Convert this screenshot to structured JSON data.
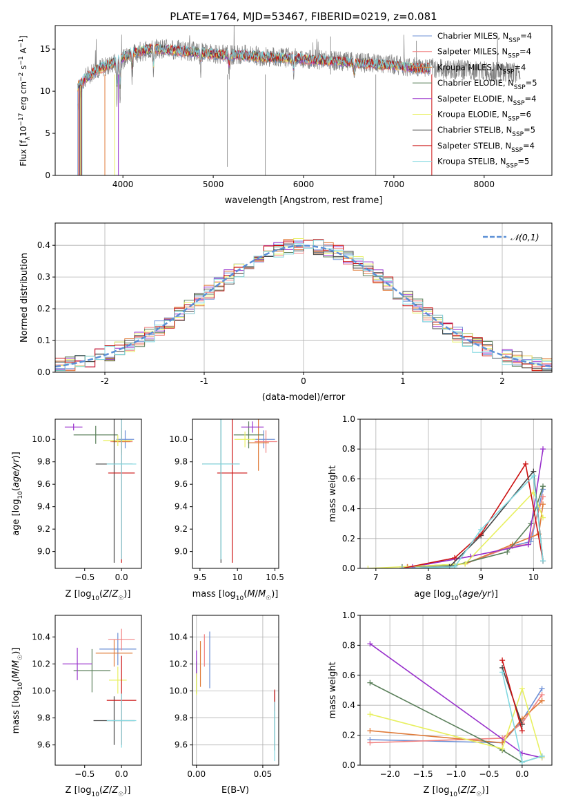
{
  "chart_data": [
    {
      "id": "spectrum",
      "type": "line",
      "title": "PLATE=1764, MJD=53467, FIBERID=0219, z=0.081",
      "xlabel": "wavelength [Angstrom, rest frame]",
      "ylabel": "Flux [f_λ 10^-17 erg cm^-2 s^-1 A^-1]",
      "xlim": [
        3250,
        8750
      ],
      "ylim": [
        0,
        17.8
      ],
      "xticks": [
        4000,
        5000,
        6000,
        7000,
        8000
      ],
      "yticks": [
        0,
        5,
        10,
        15
      ],
      "legend_position": "top-right",
      "legend": [
        {
          "label": "Chabrier MILES, N_SSP=4",
          "color": "#6b8fd6"
        },
        {
          "label": "Salpeter MILES, N_SSP=4",
          "color": "#f08080"
        },
        {
          "label": "Kroupa MILES, N_SSP=4",
          "color": "#e07b39"
        },
        {
          "label": "Chabrier ELODIE, N_SSP=5",
          "color": "#5a7f5a"
        },
        {
          "label": "Salpeter ELODIE, N_SSP=4",
          "color": "#9932cc"
        },
        {
          "label": "Kroupa ELODIE, N_SSP=6",
          "color": "#e8f060"
        },
        {
          "label": "Chabrier STELIB, N_SSP=5",
          "color": "#444444"
        },
        {
          "label": "Salpeter STELIB, N_SSP=4",
          "color": "#cc1111"
        },
        {
          "label": "Kroupa STELIB, N_SSP=5",
          "color": "#80d8e0"
        }
      ],
      "data_series": {
        "name": "data",
        "color": "#808080",
        "x": [
          3500,
          3600,
          3700,
          3800,
          3900,
          4000,
          4100,
          4200,
          4300,
          4400,
          4500,
          4600,
          4700,
          4800,
          4900,
          5000,
          5100,
          5200,
          5300,
          5400,
          5500,
          5600,
          5700,
          5800,
          5900,
          6000,
          6100,
          6200,
          6300,
          6400,
          6500,
          6600,
          6700,
          6800,
          6900,
          7000,
          7100,
          7200,
          7300,
          7400,
          7500,
          7600,
          7700,
          7800,
          7900,
          8000,
          8100,
          8200,
          8300,
          8400
        ],
        "y": [
          10.5,
          11.8,
          12.6,
          12.9,
          13.3,
          13.8,
          14.4,
          14.7,
          14.9,
          15.1,
          15.0,
          14.9,
          14.8,
          14.7,
          14.6,
          14.5,
          14.4,
          14.3,
          14.4,
          14.3,
          14.2,
          14.1,
          14.1,
          14.0,
          14.0,
          13.9,
          13.8,
          13.7,
          13.6,
          13.6,
          13.5,
          13.4,
          13.4,
          13.3,
          13.2,
          13.2,
          13.0,
          12.9,
          12.9,
          12.8,
          12.7,
          12.6,
          12.6,
          12.5,
          12.5,
          12.4,
          12.3,
          12.3,
          12.2,
          12.2
        ]
      },
      "model_series": {
        "x": [
          3500,
          3600,
          3700,
          3800,
          3900,
          4000,
          4100,
          4200,
          4300,
          4400,
          4500,
          4600,
          4700,
          4800,
          4900,
          5000,
          5100,
          5200,
          5300,
          5400,
          5500,
          5600,
          5700,
          5800,
          5900,
          6000,
          6100,
          6200,
          6300,
          6400,
          6500,
          6600,
          6700,
          6800,
          6900,
          7000,
          7100,
          7200,
          7300,
          7400
        ],
        "y": [
          10.6,
          11.6,
          12.5,
          12.9,
          13.4,
          14.0,
          14.6,
          14.8,
          15.0,
          15.0,
          14.9,
          14.8,
          14.7,
          14.6,
          14.5,
          14.4,
          14.3,
          14.3,
          14.3,
          14.2,
          14.1,
          14.0,
          14.0,
          13.9,
          13.9,
          13.8,
          13.7,
          13.6,
          13.6,
          13.5,
          13.4,
          13.3,
          13.3,
          13.2,
          13.1,
          13.1,
          12.9,
          12.8,
          12.7,
          12.7
        ]
      }
    },
    {
      "id": "histogram",
      "type": "line",
      "xlabel": "(data-model)/error",
      "ylabel": "Normed distribution",
      "xlim": [
        -2.5,
        2.5
      ],
      "ylim": [
        0,
        0.47
      ],
      "xticks": [
        -2,
        -1,
        0,
        1,
        2
      ],
      "yticks": [
        0.0,
        0.1,
        0.2,
        0.3,
        0.4
      ],
      "legend_position": "top-right",
      "legend_label": "𝒩(0,1)",
      "gaussian_color": "#5b8fd6",
      "bin_edges": [
        -2.5,
        -2.4,
        -2.3,
        -2.2,
        -2.1,
        -2.0,
        -1.9,
        -1.8,
        -1.7,
        -1.6,
        -1.5,
        -1.4,
        -1.3,
        -1.2,
        -1.1,
        -1.0,
        -0.9,
        -0.8,
        -0.7,
        -0.6,
        -0.5,
        -0.4,
        -0.3,
        -0.2,
        -0.1,
        0.0,
        0.1,
        0.2,
        0.3,
        0.4,
        0.5,
        0.6,
        0.7,
        0.8,
        0.9,
        1.0,
        1.1,
        1.2,
        1.3,
        1.4,
        1.5,
        1.6,
        1.7,
        1.8,
        1.9,
        2.0,
        2.1,
        2.2,
        2.3,
        2.4,
        2.5
      ],
      "series_colors": [
        "#6b8fd6",
        "#f08080",
        "#e07b39",
        "#5a7f5a",
        "#9932cc",
        "#e8f060",
        "#444444",
        "#cc1111",
        "#80d8e0"
      ]
    },
    {
      "id": "age-vs-z",
      "type": "scatter",
      "xlabel": "Z [log10(Z/Z☉)]",
      "ylabel": "age [log10(age/yr)]",
      "xlim": [
        -0.9,
        0.27
      ],
      "ylim": [
        8.85,
        10.18
      ],
      "xticks": [
        -0.5,
        0.0
      ],
      "xtick_labels": [
        "−0.5",
        "0.0"
      ],
      "yticks": [
        9.0,
        9.2,
        9.4,
        9.6,
        9.8,
        10.0
      ],
      "points": [
        {
          "x": 0.05,
          "y": 10.0,
          "xerr": 0.12,
          "yerr": 0.08,
          "color": "#6b8fd6"
        },
        {
          "x": 0.0,
          "y": 9.98,
          "xerr": 0.15,
          "yerr": 0.12,
          "color": "#f08080"
        },
        {
          "x": 0.0,
          "y": 9.98,
          "xerr": 0.12,
          "yerr": 0.1,
          "color": "#e07b39"
        },
        {
          "x": -0.35,
          "y": 10.04,
          "xerr": 0.3,
          "yerr": 0.08,
          "color": "#5a7f5a"
        },
        {
          "x": -0.65,
          "y": 10.11,
          "xerr": 0.12,
          "yerr": 0.03,
          "color": "#9932cc"
        },
        {
          "x": -0.05,
          "y": 9.99,
          "xerr": 0.2,
          "yerr": 0.05,
          "color": "#e8f060"
        },
        {
          "x": -0.1,
          "y": 9.78,
          "xerr": 0.25,
          "yerr": 0.88,
          "color": "#444444"
        },
        {
          "x": 0.0,
          "y": 9.7,
          "xerr": 0.18,
          "yerr": 0.8,
          "color": "#cc1111"
        },
        {
          "x": 0.0,
          "y": 9.78,
          "xerr": 0.2,
          "yerr": 0.85,
          "color": "#80d8e0"
        }
      ]
    },
    {
      "id": "age-vs-mass",
      "type": "scatter",
      "xlabel": "mass [log10(M/M☉)]",
      "xlim": [
        9.4,
        10.55
      ],
      "ylim": [
        8.85,
        10.18
      ],
      "xticks": [
        9.5,
        10.0,
        10.5
      ],
      "yticks": [
        9.0,
        9.2,
        9.4,
        9.6,
        9.8,
        10.0
      ],
      "points": [
        {
          "x": 10.35,
          "y": 10.0,
          "xerr": 0.15,
          "yerr": 0.08,
          "color": "#6b8fd6"
        },
        {
          "x": 10.38,
          "y": 9.98,
          "xerr": 0.15,
          "yerr": 0.1,
          "color": "#f08080"
        },
        {
          "x": 10.28,
          "y": 9.97,
          "xerr": 0.14,
          "yerr": 0.25,
          "color": "#e07b39"
        },
        {
          "x": 10.15,
          "y": 10.04,
          "xerr": 0.2,
          "yerr": 0.12,
          "color": "#5a7f5a"
        },
        {
          "x": 10.2,
          "y": 10.11,
          "xerr": 0.15,
          "yerr": 0.05,
          "color": "#9932cc"
        },
        {
          "x": 10.1,
          "y": 10.0,
          "xerr": 0.14,
          "yerr": 0.07,
          "color": "#e8f060"
        },
        {
          "x": 9.78,
          "y": 9.78,
          "xerr": 0.25,
          "yerr": 0.88,
          "color": "#444444"
        },
        {
          "x": 9.93,
          "y": 9.7,
          "xerr": 0.2,
          "yerr": 0.8,
          "color": "#cc1111"
        },
        {
          "x": 9.78,
          "y": 9.78,
          "xerr": 0.25,
          "yerr": 0.85,
          "color": "#80d8e0"
        }
      ]
    },
    {
      "id": "mass-weight-vs-age",
      "type": "line",
      "xlabel": "age [log10(age/yr)]",
      "ylabel": "mass weight",
      "xlim": [
        6.7,
        10.35
      ],
      "ylim": [
        0,
        1.0
      ],
      "xticks": [
        7,
        8,
        9,
        10
      ],
      "yticks": [
        0.0,
        0.2,
        0.4,
        0.6,
        0.8,
        1.0
      ],
      "series": [
        {
          "color": "#6b8fd6",
          "x": [
            7.6,
            8.7,
            9.6,
            9.95,
            10.18
          ],
          "y": [
            0.01,
            0.03,
            0.15,
            0.18,
            0.53
          ]
        },
        {
          "color": "#f08080",
          "x": [
            7.6,
            8.7,
            9.6,
            9.9,
            10.18
          ],
          "y": [
            0.01,
            0.03,
            0.15,
            0.16,
            0.48
          ]
        },
        {
          "color": "#e07b39",
          "x": [
            7.6,
            8.7,
            9.6,
            10.1,
            10.18
          ],
          "y": [
            0.01,
            0.03,
            0.16,
            0.23,
            0.43
          ]
        },
        {
          "color": "#5a7f5a",
          "x": [
            7.5,
            8.5,
            9.5,
            9.95,
            10.18
          ],
          "y": [
            0.01,
            0.02,
            0.11,
            0.3,
            0.55
          ]
        },
        {
          "color": "#9932cc",
          "x": [
            7.7,
            8.8,
            9.9,
            10.18
          ],
          "y": [
            0.01,
            0.08,
            0.16,
            0.8
          ]
        },
        {
          "color": "#e8f060",
          "x": [
            6.85,
            8.7,
            10.0,
            10.18
          ],
          "y": [
            0.0,
            0.03,
            0.51,
            0.34
          ]
        },
        {
          "color": "#444444",
          "x": [
            7.5,
            8.4,
            9.0,
            10.0,
            10.18
          ],
          "y": [
            0.0,
            0.01,
            0.22,
            0.65,
            0.05
          ]
        },
        {
          "color": "#cc1111",
          "x": [
            7.5,
            8.5,
            9.0,
            9.85,
            10.18
          ],
          "y": [
            0.0,
            0.07,
            0.23,
            0.7,
            0.05
          ]
        },
        {
          "color": "#80d8e0",
          "x": [
            7.5,
            8.5,
            9.0,
            10.0,
            10.18
          ],
          "y": [
            0.0,
            0.01,
            0.26,
            0.62,
            0.05
          ]
        }
      ]
    },
    {
      "id": "mass-vs-z",
      "type": "scatter",
      "xlabel": "Z [log10(Z/Z☉)]",
      "ylabel": "mass [log10(M/M☉)]",
      "xlim": [
        -0.9,
        0.27
      ],
      "ylim": [
        9.45,
        10.56
      ],
      "xticks": [
        -0.5,
        0.0
      ],
      "xtick_labels": [
        "−0.5",
        "0.0"
      ],
      "yticks": [
        9.6,
        9.8,
        10.0,
        10.2,
        10.4
      ],
      "points": [
        {
          "x": -0.05,
          "y": 10.31,
          "xerr": 0.25,
          "yerr": 0.12,
          "color": "#6b8fd6"
        },
        {
          "x": 0.0,
          "y": 10.38,
          "xerr": 0.18,
          "yerr": 0.08,
          "color": "#f08080"
        },
        {
          "x": -0.1,
          "y": 10.28,
          "xerr": 0.25,
          "yerr": 0.1,
          "color": "#e07b39"
        },
        {
          "x": -0.4,
          "y": 10.15,
          "xerr": 0.25,
          "yerr": 0.16,
          "color": "#5a7f5a"
        },
        {
          "x": -0.6,
          "y": 10.2,
          "xerr": 0.2,
          "yerr": 0.12,
          "color": "#9932cc"
        },
        {
          "x": -0.05,
          "y": 10.08,
          "xerr": 0.12,
          "yerr": 0.1,
          "color": "#e8f060"
        },
        {
          "x": -0.1,
          "y": 9.78,
          "xerr": 0.28,
          "yerr": 0.18,
          "color": "#444444"
        },
        {
          "x": 0.0,
          "y": 9.93,
          "xerr": 0.2,
          "yerr": 0.33,
          "color": "#cc1111"
        },
        {
          "x": 0.0,
          "y": 9.78,
          "xerr": 0.2,
          "yerr": 0.2,
          "color": "#80d8e0"
        }
      ]
    },
    {
      "id": "mass-vs-ebv",
      "type": "scatter",
      "xlabel": "E(B-V)",
      "xlim": [
        -0.003,
        0.062
      ],
      "ylim": [
        9.45,
        10.56
      ],
      "xticks": [
        0.0,
        0.05
      ],
      "xtick_labels": [
        "0.00",
        "0.05"
      ],
      "yticks": [
        9.6,
        9.8,
        10.0,
        10.2,
        10.4
      ],
      "points": [
        {
          "x": 0.01,
          "y": 10.23,
          "yerr": 0.21,
          "color": "#6b8fd6"
        },
        {
          "x": 0.006,
          "y": 10.3,
          "yerr": 0.12,
          "color": "#f08080"
        },
        {
          "x": 0.003,
          "y": 10.2,
          "yerr": 0.17,
          "color": "#e07b39"
        },
        {
          "x": 0.0,
          "y": 10.1,
          "yerr": 0.12,
          "color": "#5a7f5a"
        },
        {
          "x": 0.0,
          "y": 10.2,
          "yerr": 0.1,
          "color": "#9932cc"
        },
        {
          "x": 0.0,
          "y": 10.05,
          "yerr": 0.08,
          "color": "#e8f060"
        },
        {
          "x": 0.059,
          "y": 9.78,
          "yerr": 0.22,
          "color": "#444444"
        },
        {
          "x": 0.059,
          "y": 9.93,
          "yerr": 0.08,
          "color": "#cc1111"
        },
        {
          "x": 0.059,
          "y": 9.7,
          "yerr": 0.22,
          "color": "#80d8e0"
        }
      ]
    },
    {
      "id": "mass-weight-vs-z",
      "type": "line",
      "xlabel": "Z [log10(Z/Z☉)]",
      "ylabel": "mass weight",
      "xlim": [
        -2.45,
        0.45
      ],
      "ylim": [
        0,
        1.0
      ],
      "xticks": [
        -2.0,
        -1.5,
        -1.0,
        -0.5,
        0.0
      ],
      "xtick_labels": [
        "−2.0",
        "−1.5",
        "−1.0",
        "−0.5",
        "0.0"
      ],
      "yticks": [
        0.0,
        0.2,
        0.4,
        0.6,
        0.8,
        1.0
      ],
      "series": [
        {
          "color": "#6b8fd6",
          "x": [
            -2.3,
            -0.3,
            0.0,
            0.3
          ],
          "y": [
            0.17,
            0.15,
            0.3,
            0.51
          ]
        },
        {
          "color": "#f08080",
          "x": [
            -2.3,
            -0.3,
            0.0,
            0.3
          ],
          "y": [
            0.15,
            0.18,
            0.28,
            0.47
          ]
        },
        {
          "color": "#e07b39",
          "x": [
            -2.3,
            -0.3,
            0.0,
            0.3
          ],
          "y": [
            0.23,
            0.15,
            0.31,
            0.43
          ]
        },
        {
          "color": "#5a7f5a",
          "x": [
            -2.3,
            -0.3,
            0.0,
            0.3
          ],
          "y": [
            0.55,
            0.1,
            0.02,
            0.06
          ]
        },
        {
          "color": "#9932cc",
          "x": [
            -2.3,
            0.0,
            0.3
          ],
          "y": [
            0.81,
            0.08,
            0.05
          ]
        },
        {
          "color": "#e8f060",
          "x": [
            -2.3,
            -0.3,
            0.0,
            0.3
          ],
          "y": [
            0.34,
            0.11,
            0.51,
            0.05
          ]
        },
        {
          "color": "#444444",
          "x": [
            -0.3,
            0.0
          ],
          "y": [
            0.65,
            0.27
          ]
        },
        {
          "color": "#cc1111",
          "x": [
            -0.3,
            0.0
          ],
          "y": [
            0.7,
            0.23
          ]
        },
        {
          "color": "#80d8e0",
          "x": [
            -0.3,
            0.0,
            0.3
          ],
          "y": [
            0.62,
            0.02,
            0.06
          ]
        }
      ]
    }
  ]
}
